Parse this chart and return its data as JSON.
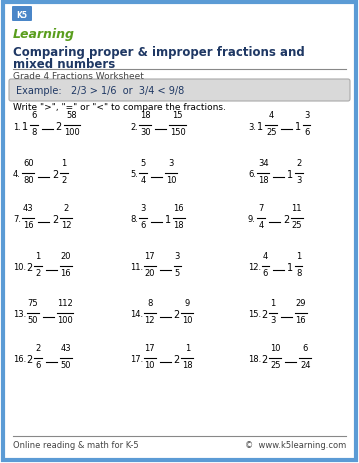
{
  "title1": "Comparing proper & improper fractions and",
  "title2": "mixed numbers",
  "subtitle": "Grade 4 Fractions Worksheet",
  "example_text": "Example:   2/3 > 1/6  or  3/4 < 9/8",
  "instruction": "Write \">\", \"=\" or \"<\" to compare the fractions.",
  "border_color": "#5b9bd5",
  "title_color": "#1f3864",
  "footer_left": "Online reading & math for K-5",
  "footer_right": "©  www.k5learning.com",
  "problems": [
    {
      "num": "1.",
      "left": {
        "whole": "1",
        "num": "6",
        "den": "8"
      },
      "right": {
        "whole": "2",
        "num": "58",
        "den": "100"
      }
    },
    {
      "num": "2.",
      "left": {
        "whole": "",
        "num": "18",
        "den": "30"
      },
      "right": {
        "whole": "",
        "num": "15",
        "den": "150"
      }
    },
    {
      "num": "3.",
      "left": {
        "whole": "1",
        "num": "4",
        "den": "25"
      },
      "right": {
        "whole": "1",
        "num": "3",
        "den": "6"
      }
    },
    {
      "num": "4.",
      "left": {
        "whole": "",
        "num": "60",
        "den": "80"
      },
      "right": {
        "whole": "2",
        "num": "1",
        "den": "2"
      }
    },
    {
      "num": "5.",
      "left": {
        "whole": "",
        "num": "5",
        "den": "4"
      },
      "right": {
        "whole": "",
        "num": "3",
        "den": "10"
      }
    },
    {
      "num": "6.",
      "left": {
        "whole": "",
        "num": "34",
        "den": "18"
      },
      "right": {
        "whole": "1",
        "num": "2",
        "den": "3"
      }
    },
    {
      "num": "7.",
      "left": {
        "whole": "",
        "num": "43",
        "den": "16"
      },
      "right": {
        "whole": "2",
        "num": "2",
        "den": "12"
      }
    },
    {
      "num": "8.",
      "left": {
        "whole": "",
        "num": "3",
        "den": "6"
      },
      "right": {
        "whole": "1",
        "num": "16",
        "den": "18"
      }
    },
    {
      "num": "9.",
      "left": {
        "whole": "",
        "num": "7",
        "den": "4"
      },
      "right": {
        "whole": "2",
        "num": "11",
        "den": "25"
      }
    },
    {
      "num": "10.",
      "left": {
        "whole": "2",
        "num": "1",
        "den": "2"
      },
      "right": {
        "whole": "",
        "num": "20",
        "den": "16"
      }
    },
    {
      "num": "11.",
      "left": {
        "whole": "",
        "num": "17",
        "den": "20"
      },
      "right": {
        "whole": "",
        "num": "3",
        "den": "5"
      }
    },
    {
      "num": "12.",
      "left": {
        "whole": "",
        "num": "4",
        "den": "6"
      },
      "right": {
        "whole": "1",
        "num": "1",
        "den": "8"
      }
    },
    {
      "num": "13.",
      "left": {
        "whole": "",
        "num": "75",
        "den": "50"
      },
      "right": {
        "whole": "",
        "num": "112",
        "den": "100"
      }
    },
    {
      "num": "14.",
      "left": {
        "whole": "",
        "num": "8",
        "den": "12"
      },
      "right": {
        "whole": "2",
        "num": "9",
        "den": "10"
      }
    },
    {
      "num": "15.",
      "left": {
        "whole": "2",
        "num": "1",
        "den": "3"
      },
      "right": {
        "whole": "",
        "num": "29",
        "den": "16"
      }
    },
    {
      "num": "16.",
      "left": {
        "whole": "2",
        "num": "2",
        "den": "6"
      },
      "right": {
        "whole": "",
        "num": "43",
        "den": "50"
      }
    },
    {
      "num": "17.",
      "left": {
        "whole": "",
        "num": "17",
        "den": "10"
      },
      "right": {
        "whole": "2",
        "num": "1",
        "den": "18"
      }
    },
    {
      "num": "18.",
      "left": {
        "whole": "2",
        "num": "10",
        "den": "25"
      },
      "right": {
        "whole": "",
        "num": "6",
        "den": "24"
      }
    }
  ]
}
